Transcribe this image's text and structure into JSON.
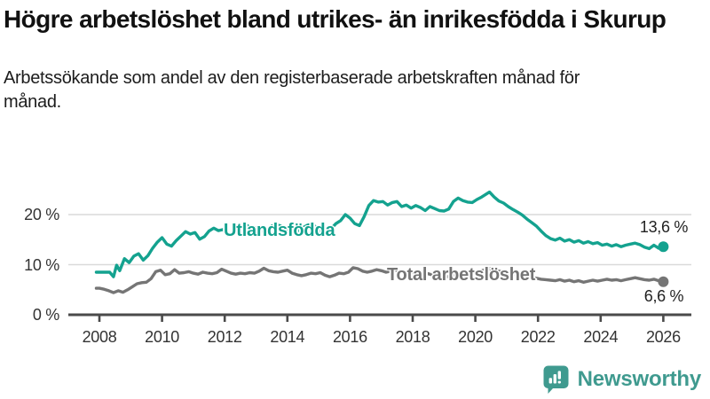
{
  "header": {
    "title": "Högre arbetslöshet bland utrikes- än inrikesfödda i Skurup",
    "subtitle": "Arbetssökande som andel av den registerbaserade arbetskraften månad för månad."
  },
  "chart_data": {
    "type": "line",
    "title": "Högre arbetslöshet bland utrikes- än inrikesfödda i Skurup",
    "subtitle": "Arbetssökande som andel av den registerbaserade arbetskraften månad för månad.",
    "unit": "%",
    "grid": "horizontal",
    "legend_position": "inline-labels-on-lines",
    "x_axis": {
      "ticks": [
        2008,
        2010,
        2012,
        2014,
        2016,
        2018,
        2020,
        2022,
        2024,
        2026
      ],
      "range": [
        2007.0,
        2026.9
      ]
    },
    "y_axis": {
      "ticks": [
        {
          "value": 0,
          "label": "0 %"
        },
        {
          "value": 10,
          "label": "10 %"
        },
        {
          "value": 20,
          "label": "20 %"
        }
      ],
      "range": [
        0,
        26
      ]
    },
    "series": [
      {
        "name": "Utlandsfödda",
        "color": "#14a28f",
        "end_label": "13,6 %",
        "end_value": 13.6,
        "points": [
          [
            2007.9,
            8.5
          ],
          [
            2008.0,
            8.5
          ],
          [
            2008.17,
            8.5
          ],
          [
            2008.33,
            8.5
          ],
          [
            2008.45,
            7.6
          ],
          [
            2008.55,
            9.9
          ],
          [
            2008.65,
            8.8
          ],
          [
            2008.8,
            11.2
          ],
          [
            2008.95,
            10.4
          ],
          [
            2009.1,
            11.7
          ],
          [
            2009.25,
            12.2
          ],
          [
            2009.4,
            10.9
          ],
          [
            2009.55,
            11.8
          ],
          [
            2009.7,
            13.3
          ],
          [
            2009.85,
            14.5
          ],
          [
            2010.0,
            15.4
          ],
          [
            2010.15,
            14.1
          ],
          [
            2010.3,
            13.7
          ],
          [
            2010.45,
            14.8
          ],
          [
            2010.6,
            15.7
          ],
          [
            2010.75,
            16.6
          ],
          [
            2010.9,
            16.1
          ],
          [
            2011.05,
            16.4
          ],
          [
            2011.2,
            15.1
          ],
          [
            2011.35,
            15.6
          ],
          [
            2011.5,
            16.7
          ],
          [
            2011.65,
            17.3
          ],
          [
            2011.8,
            16.8
          ],
          [
            2011.95,
            17.0
          ],
          [
            2012.1,
            15.9
          ],
          [
            2012.25,
            16.1
          ],
          [
            2012.4,
            17.0
          ],
          [
            2012.55,
            17.6
          ],
          [
            2012.7,
            17.9
          ],
          [
            2012.85,
            17.2
          ],
          [
            2013.0,
            17.4
          ],
          [
            2013.15,
            16.6
          ],
          [
            2013.3,
            16.9
          ],
          [
            2013.45,
            17.5
          ],
          [
            2013.6,
            18.0
          ],
          [
            2013.75,
            17.8
          ],
          [
            2013.9,
            17.3
          ],
          [
            2014.05,
            17.1
          ],
          [
            2014.2,
            16.4
          ],
          [
            2014.35,
            16.8
          ],
          [
            2014.5,
            17.4
          ],
          [
            2014.65,
            17.9
          ],
          [
            2014.8,
            18.1
          ],
          [
            2014.95,
            17.3
          ],
          [
            2015.1,
            16.3
          ],
          [
            2015.25,
            16.7
          ],
          [
            2015.4,
            17.2
          ],
          [
            2015.55,
            18.2
          ],
          [
            2015.7,
            18.8
          ],
          [
            2015.85,
            20.0
          ],
          [
            2016.0,
            19.3
          ],
          [
            2016.15,
            18.2
          ],
          [
            2016.3,
            17.8
          ],
          [
            2016.45,
            19.6
          ],
          [
            2016.6,
            21.8
          ],
          [
            2016.75,
            22.8
          ],
          [
            2016.9,
            22.5
          ],
          [
            2017.05,
            22.6
          ],
          [
            2017.2,
            21.9
          ],
          [
            2017.35,
            22.4
          ],
          [
            2017.5,
            22.6
          ],
          [
            2017.65,
            21.6
          ],
          [
            2017.8,
            21.9
          ],
          [
            2017.95,
            21.3
          ],
          [
            2018.1,
            21.8
          ],
          [
            2018.25,
            21.4
          ],
          [
            2018.4,
            20.8
          ],
          [
            2018.55,
            21.6
          ],
          [
            2018.7,
            21.2
          ],
          [
            2018.85,
            20.8
          ],
          [
            2019.0,
            20.7
          ],
          [
            2019.15,
            21.1
          ],
          [
            2019.3,
            22.6
          ],
          [
            2019.45,
            23.3
          ],
          [
            2019.6,
            22.8
          ],
          [
            2019.75,
            22.5
          ],
          [
            2019.9,
            22.4
          ],
          [
            2020.05,
            23.0
          ],
          [
            2020.2,
            23.5
          ],
          [
            2020.35,
            24.1
          ],
          [
            2020.45,
            24.5
          ],
          [
            2020.6,
            23.5
          ],
          [
            2020.75,
            22.7
          ],
          [
            2020.9,
            22.3
          ],
          [
            2021.05,
            21.6
          ],
          [
            2021.2,
            21.0
          ],
          [
            2021.35,
            20.5
          ],
          [
            2021.5,
            19.9
          ],
          [
            2021.65,
            19.1
          ],
          [
            2021.8,
            18.4
          ],
          [
            2021.95,
            17.7
          ],
          [
            2022.1,
            16.7
          ],
          [
            2022.25,
            15.8
          ],
          [
            2022.4,
            15.2
          ],
          [
            2022.55,
            14.9
          ],
          [
            2022.7,
            15.3
          ],
          [
            2022.85,
            14.7
          ],
          [
            2023.0,
            15.0
          ],
          [
            2023.15,
            14.5
          ],
          [
            2023.3,
            14.8
          ],
          [
            2023.45,
            14.3
          ],
          [
            2023.6,
            14.6
          ],
          [
            2023.75,
            14.2
          ],
          [
            2023.9,
            14.4
          ],
          [
            2024.05,
            13.9
          ],
          [
            2024.2,
            14.1
          ],
          [
            2024.35,
            13.7
          ],
          [
            2024.5,
            14.0
          ],
          [
            2024.65,
            13.6
          ],
          [
            2024.8,
            13.9
          ],
          [
            2024.95,
            14.1
          ],
          [
            2025.1,
            14.3
          ],
          [
            2025.25,
            14.0
          ],
          [
            2025.4,
            13.5
          ],
          [
            2025.55,
            13.2
          ],
          [
            2025.7,
            13.9
          ],
          [
            2025.85,
            13.3
          ],
          [
            2026.0,
            13.6
          ]
        ]
      },
      {
        "name": "Total arbetslöshet",
        "color": "#757575",
        "end_label": "6,6 %",
        "end_value": 6.6,
        "points": [
          [
            2007.9,
            5.3
          ],
          [
            2008.0,
            5.3
          ],
          [
            2008.15,
            5.1
          ],
          [
            2008.3,
            4.8
          ],
          [
            2008.45,
            4.4
          ],
          [
            2008.6,
            4.8
          ],
          [
            2008.75,
            4.5
          ],
          [
            2008.9,
            5.0
          ],
          [
            2009.05,
            5.6
          ],
          [
            2009.2,
            6.2
          ],
          [
            2009.35,
            6.4
          ],
          [
            2009.5,
            6.5
          ],
          [
            2009.65,
            7.2
          ],
          [
            2009.8,
            8.6
          ],
          [
            2009.95,
            8.9
          ],
          [
            2010.1,
            8.0
          ],
          [
            2010.25,
            8.2
          ],
          [
            2010.4,
            9.0
          ],
          [
            2010.55,
            8.3
          ],
          [
            2010.7,
            8.4
          ],
          [
            2010.85,
            8.6
          ],
          [
            2011.0,
            8.3
          ],
          [
            2011.15,
            8.1
          ],
          [
            2011.3,
            8.5
          ],
          [
            2011.45,
            8.3
          ],
          [
            2011.6,
            8.2
          ],
          [
            2011.75,
            8.4
          ],
          [
            2011.9,
            9.1
          ],
          [
            2012.05,
            8.7
          ],
          [
            2012.2,
            8.3
          ],
          [
            2012.35,
            8.1
          ],
          [
            2012.5,
            8.3
          ],
          [
            2012.65,
            8.2
          ],
          [
            2012.8,
            8.4
          ],
          [
            2012.95,
            8.3
          ],
          [
            2013.1,
            8.7
          ],
          [
            2013.25,
            9.3
          ],
          [
            2013.4,
            8.8
          ],
          [
            2013.55,
            8.6
          ],
          [
            2013.7,
            8.5
          ],
          [
            2013.85,
            8.7
          ],
          [
            2014.0,
            8.9
          ],
          [
            2014.15,
            8.3
          ],
          [
            2014.3,
            8.0
          ],
          [
            2014.45,
            7.8
          ],
          [
            2014.6,
            8.0
          ],
          [
            2014.75,
            8.3
          ],
          [
            2014.9,
            8.2
          ],
          [
            2015.05,
            8.4
          ],
          [
            2015.2,
            7.9
          ],
          [
            2015.35,
            7.6
          ],
          [
            2015.5,
            7.9
          ],
          [
            2015.65,
            8.3
          ],
          [
            2015.8,
            8.2
          ],
          [
            2015.95,
            8.5
          ],
          [
            2016.1,
            9.4
          ],
          [
            2016.25,
            9.2
          ],
          [
            2016.4,
            8.7
          ],
          [
            2016.55,
            8.5
          ],
          [
            2016.7,
            8.7
          ],
          [
            2016.85,
            9.0
          ],
          [
            2017.0,
            8.8
          ],
          [
            2017.15,
            8.5
          ],
          [
            2017.3,
            8.7
          ],
          [
            2017.45,
            8.9
          ],
          [
            2017.6,
            8.6
          ],
          [
            2017.75,
            8.4
          ],
          [
            2017.9,
            8.3
          ],
          [
            2018.05,
            8.5
          ],
          [
            2018.2,
            8.2
          ],
          [
            2018.35,
            8.0
          ],
          [
            2018.5,
            8.2
          ],
          [
            2018.65,
            7.9
          ],
          [
            2018.8,
            7.7
          ],
          [
            2018.95,
            7.9
          ],
          [
            2019.1,
            7.6
          ],
          [
            2019.25,
            7.8
          ],
          [
            2019.4,
            8.0
          ],
          [
            2019.55,
            7.7
          ],
          [
            2019.7,
            7.9
          ],
          [
            2019.85,
            8.2
          ],
          [
            2020.0,
            8.3
          ],
          [
            2020.15,
            8.6
          ],
          [
            2020.3,
            9.0
          ],
          [
            2020.45,
            9.2
          ],
          [
            2020.6,
            8.9
          ],
          [
            2020.75,
            8.7
          ],
          [
            2020.9,
            8.5
          ],
          [
            2021.05,
            8.3
          ],
          [
            2021.2,
            8.1
          ],
          [
            2021.35,
            7.9
          ],
          [
            2021.5,
            7.7
          ],
          [
            2021.65,
            7.5
          ],
          [
            2021.8,
            7.4
          ],
          [
            2021.95,
            7.3
          ],
          [
            2022.1,
            7.1
          ],
          [
            2022.25,
            7.0
          ],
          [
            2022.4,
            6.9
          ],
          [
            2022.55,
            6.8
          ],
          [
            2022.7,
            7.0
          ],
          [
            2022.85,
            6.7
          ],
          [
            2023.0,
            6.9
          ],
          [
            2023.15,
            6.6
          ],
          [
            2023.3,
            6.8
          ],
          [
            2023.45,
            6.5
          ],
          [
            2023.6,
            6.7
          ],
          [
            2023.75,
            6.9
          ],
          [
            2023.9,
            6.7
          ],
          [
            2024.05,
            6.9
          ],
          [
            2024.2,
            7.1
          ],
          [
            2024.35,
            6.9
          ],
          [
            2024.5,
            7.0
          ],
          [
            2024.65,
            6.8
          ],
          [
            2024.8,
            7.0
          ],
          [
            2024.95,
            7.2
          ],
          [
            2025.1,
            7.4
          ],
          [
            2025.25,
            7.2
          ],
          [
            2025.4,
            7.0
          ],
          [
            2025.55,
            6.9
          ],
          [
            2025.7,
            7.1
          ],
          [
            2025.85,
            6.8
          ],
          [
            2026.0,
            6.6
          ]
        ]
      }
    ]
  },
  "branding": {
    "logo_text": "Newsworthy",
    "logo_icon": "bar-chart-speech-bubble-icon",
    "logo_color": "#3f9a8f"
  },
  "colors": {
    "background": "#ffffff",
    "title_text": "#111111",
    "axis_line": "#4a4a4a",
    "grid_line": "#dadada",
    "tick_text": "#333333",
    "series_foreign_born": "#14a28f",
    "series_total": "#757575"
  }
}
